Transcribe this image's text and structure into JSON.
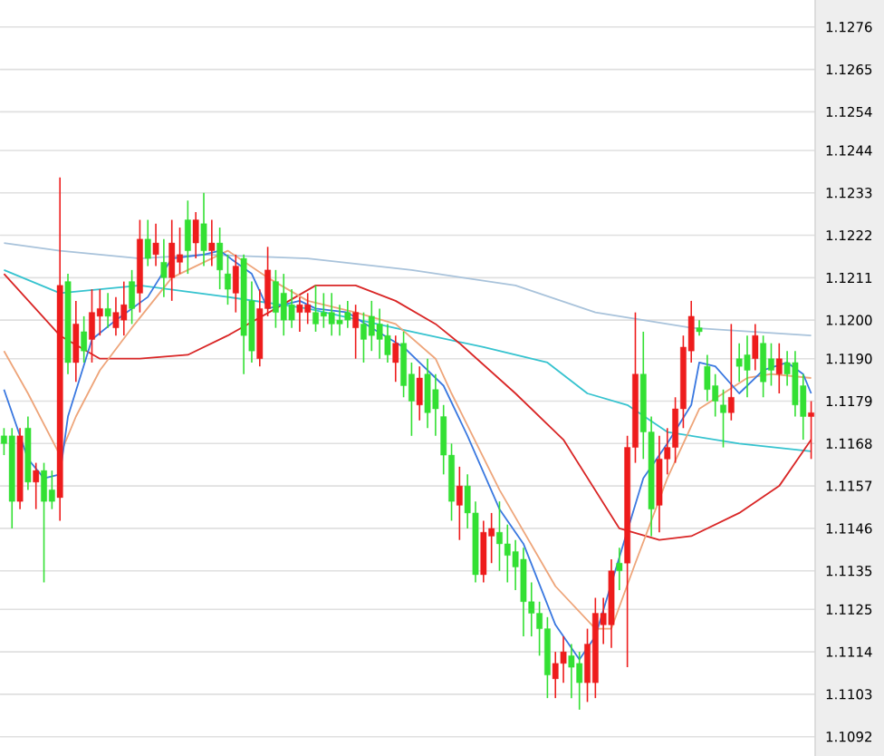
{
  "chart_data": {
    "type": "candlestick",
    "categories": [
      null,
      null,
      null,
      null,
      null,
      null,
      null,
      null,
      null,
      null,
      null,
      null,
      null,
      null,
      null,
      null,
      null,
      null,
      null,
      null,
      null,
      null,
      null,
      null,
      null,
      null,
      null,
      null,
      null,
      null,
      null,
      null,
      null,
      null,
      null,
      null,
      null,
      null,
      null,
      null,
      null,
      null,
      null,
      null,
      null,
      null,
      null,
      null,
      null,
      null,
      null,
      null,
      null,
      null,
      null,
      null,
      null,
      null,
      null,
      null,
      null,
      null,
      null,
      null,
      null,
      null,
      null,
      null,
      null,
      null,
      null,
      null,
      null,
      null,
      null,
      null,
      null,
      null,
      null,
      null,
      null,
      null,
      null,
      null,
      null,
      null,
      null,
      null,
      null,
      null,
      null,
      null,
      null,
      null,
      null,
      null,
      null,
      null,
      null,
      null,
      null,
      null
    ],
    "ohlc": [
      [
        1.117,
        1.1172,
        1.1165,
        1.1168
      ],
      [
        1.117,
        1.1172,
        1.1146,
        1.1153
      ],
      [
        1.1153,
        1.1172,
        1.1151,
        1.117
      ],
      [
        1.1172,
        1.1175,
        1.1156,
        1.1158
      ],
      [
        1.1158,
        1.1163,
        1.1151,
        1.1161
      ],
      [
        1.1161,
        1.1163,
        1.1132,
        1.1153
      ],
      [
        1.1156,
        1.1161,
        1.1151,
        1.1153
      ],
      [
        1.1154,
        1.1237,
        1.1148,
        1.1209
      ],
      [
        1.121,
        1.1212,
        1.1186,
        1.1189
      ],
      [
        1.1189,
        1.1205,
        1.1184,
        1.1199
      ],
      [
        1.1197,
        1.1201,
        1.1189,
        1.1192
      ],
      [
        1.1195,
        1.1208,
        1.1189,
        1.1202
      ],
      [
        1.1201,
        1.1208,
        1.1196,
        1.1203
      ],
      [
        1.1203,
        1.1207,
        1.1198,
        1.1201
      ],
      [
        1.1198,
        1.1206,
        1.1196,
        1.1202
      ],
      [
        1.12,
        1.121,
        1.1196,
        1.1204
      ],
      [
        1.121,
        1.1213,
        1.1199,
        1.1203
      ],
      [
        1.1207,
        1.1226,
        1.1202,
        1.1221
      ],
      [
        1.1221,
        1.1226,
        1.1214,
        1.1216
      ],
      [
        1.1217,
        1.1225,
        1.1214,
        1.122
      ],
      [
        1.1215,
        1.1221,
        1.1206,
        1.1211
      ],
      [
        1.1211,
        1.1226,
        1.1205,
        1.122
      ],
      [
        1.1215,
        1.1224,
        1.1212,
        1.1217
      ],
      [
        1.1226,
        1.1231,
        1.1212,
        1.1218
      ],
      [
        1.122,
        1.1228,
        1.1216,
        1.1226
      ],
      [
        1.1225,
        1.1233,
        1.1214,
        1.1218
      ],
      [
        1.1218,
        1.1226,
        1.1214,
        1.122
      ],
      [
        1.122,
        1.1224,
        1.1208,
        1.1213
      ],
      [
        1.1212,
        1.1217,
        1.1204,
        1.1208
      ],
      [
        1.1207,
        1.1217,
        1.1202,
        1.1214
      ],
      [
        1.1216,
        1.1217,
        1.1186,
        1.1196
      ],
      [
        1.1205,
        1.121,
        1.1189,
        1.1192
      ],
      [
        1.119,
        1.1208,
        1.1188,
        1.1203
      ],
      [
        1.1203,
        1.1219,
        1.1201,
        1.1213
      ],
      [
        1.121,
        1.1213,
        1.1198,
        1.1202
      ],
      [
        1.1207,
        1.1212,
        1.1196,
        1.12
      ],
      [
        1.1204,
        1.1208,
        1.1198,
        1.12
      ],
      [
        1.1202,
        1.1206,
        1.1197,
        1.1204
      ],
      [
        1.1202,
        1.1207,
        1.1199,
        1.1204
      ],
      [
        1.1202,
        1.1209,
        1.1197,
        1.1199
      ],
      [
        1.1202,
        1.1207,
        1.1198,
        1.1201
      ],
      [
        1.1202,
        1.1207,
        1.1196,
        1.1199
      ],
      [
        1.12,
        1.1204,
        1.1196,
        1.1199
      ],
      [
        1.1202,
        1.1205,
        1.1198,
        1.12
      ],
      [
        1.1198,
        1.1204,
        1.119,
        1.1202
      ],
      [
        1.1199,
        1.1202,
        1.1189,
        1.1195
      ],
      [
        1.1201,
        1.1205,
        1.1192,
        1.1196
      ],
      [
        1.1199,
        1.1203,
        1.119,
        1.1195
      ],
      [
        1.1196,
        1.1199,
        1.1189,
        1.1191
      ],
      [
        1.1189,
        1.1196,
        1.1184,
        1.1194
      ],
      [
        1.1194,
        1.1197,
        1.118,
        1.1183
      ],
      [
        1.1186,
        1.1189,
        1.117,
        1.1179
      ],
      [
        1.1178,
        1.1188,
        1.1174,
        1.1185
      ],
      [
        1.1186,
        1.119,
        1.1172,
        1.1176
      ],
      [
        1.1182,
        1.1186,
        1.117,
        1.1177
      ],
      [
        1.1175,
        1.1178,
        1.116,
        1.1165
      ],
      [
        1.1165,
        1.1168,
        1.1148,
        1.1153
      ],
      [
        1.1152,
        1.1162,
        1.1143,
        1.1157
      ],
      [
        1.1157,
        1.116,
        1.1146,
        1.115
      ],
      [
        1.115,
        1.1153,
        1.1132,
        1.1134
      ],
      [
        1.1134,
        1.1148,
        1.1132,
        1.1145
      ],
      [
        1.1144,
        1.115,
        1.1137,
        1.1146
      ],
      [
        1.1145,
        1.1153,
        1.1135,
        1.1142
      ],
      [
        1.1142,
        1.1147,
        1.1132,
        1.1139
      ],
      [
        1.114,
        1.1143,
        1.113,
        1.1136
      ],
      [
        1.1138,
        1.1141,
        1.1118,
        1.1127
      ],
      [
        1.1127,
        1.1132,
        1.1118,
        1.1124
      ],
      [
        1.1124,
        1.1127,
        1.1113,
        1.112
      ],
      [
        1.112,
        1.1123,
        1.1102,
        1.1108
      ],
      [
        1.1107,
        1.1114,
        1.1102,
        1.1111
      ],
      [
        1.1111,
        1.1118,
        1.1106,
        1.1114
      ],
      [
        1.1113,
        1.1116,
        1.1102,
        1.111
      ],
      [
        1.1111,
        1.1114,
        1.1099,
        1.1106
      ],
      [
        1.1106,
        1.112,
        1.1101,
        1.1116
      ],
      [
        1.1106,
        1.1128,
        1.1102,
        1.1124
      ],
      [
        1.1121,
        1.1128,
        1.1116,
        1.1124
      ],
      [
        1.1121,
        1.1138,
        1.1115,
        1.1135
      ],
      [
        1.1137,
        1.1141,
        1.113,
        1.1135
      ],
      [
        1.1137,
        1.117,
        1.111,
        1.1167
      ],
      [
        1.1167,
        1.1202,
        1.1163,
        1.1186
      ],
      [
        1.1186,
        1.1197,
        1.1164,
        1.1171
      ],
      [
        1.1171,
        1.1175,
        1.1144,
        1.1151
      ],
      [
        1.1152,
        1.117,
        1.1145,
        1.1164
      ],
      [
        1.1164,
        1.1172,
        1.116,
        1.1167
      ],
      [
        1.1167,
        1.118,
        1.1163,
        1.1177
      ],
      [
        1.1177,
        1.1196,
        1.1172,
        1.1193
      ],
      [
        1.1192,
        1.1205,
        1.1189,
        1.1201
      ],
      [
        1.1198,
        1.12,
        1.1196,
        1.1197
      ],
      [
        1.1188,
        1.1191,
        1.1179,
        1.1182
      ],
      [
        1.1183,
        1.1186,
        1.1175,
        1.1179
      ],
      [
        1.1178,
        1.1182,
        1.1167,
        1.1176
      ],
      [
        1.1176,
        1.1199,
        1.1174,
        1.118
      ],
      [
        1.119,
        1.1194,
        1.1184,
        1.1188
      ],
      [
        1.1191,
        1.1196,
        1.118,
        1.1187
      ],
      [
        1.119,
        1.1199,
        1.1187,
        1.1196
      ],
      [
        1.1194,
        1.1196,
        1.118,
        1.1184
      ],
      [
        1.119,
        1.1194,
        1.1183,
        1.1187
      ],
      [
        1.1186,
        1.1194,
        1.1181,
        1.119
      ],
      [
        1.1189,
        1.1192,
        1.1183,
        1.1186
      ],
      [
        1.1189,
        1.1192,
        1.1175,
        1.1178
      ],
      [
        1.1183,
        1.1186,
        1.1169,
        1.1175
      ],
      [
        1.1175,
        1.1179,
        1.1164,
        1.1176
      ]
    ],
    "colors": [
      "#33e033",
      "#33e033",
      "#ee1c1c",
      "#33e033",
      "#ee1c1c",
      "#33e033",
      "#33e033",
      "#ee1c1c",
      "#33e033",
      "#ee1c1c",
      "#33e033",
      "#ee1c1c",
      "#ee1c1c",
      "#33e033",
      "#ee1c1c",
      "#ee1c1c",
      "#33e033",
      "#ee1c1c",
      "#33e033",
      "#ee1c1c",
      "#33e033",
      "#ee1c1c",
      "#ee1c1c",
      "#33e033",
      "#ee1c1c",
      "#33e033",
      "#ee1c1c",
      "#33e033",
      "#33e033",
      "#ee1c1c",
      "#33e033",
      "#33e033",
      "#ee1c1c",
      "#ee1c1c",
      "#33e033",
      "#33e033",
      "#33e033",
      "#ee1c1c",
      "#ee1c1c",
      "#33e033",
      "#33e033",
      "#33e033",
      "#33e033",
      "#33e033",
      "#ee1c1c",
      "#33e033",
      "#33e033",
      "#33e033",
      "#33e033",
      "#ee1c1c",
      "#33e033",
      "#33e033",
      "#ee1c1c",
      "#33e033",
      "#33e033",
      "#33e033",
      "#33e033",
      "#ee1c1c",
      "#33e033",
      "#33e033",
      "#ee1c1c",
      "#ee1c1c",
      "#33e033",
      "#33e033",
      "#33e033",
      "#33e033",
      "#33e033",
      "#33e033",
      "#33e033",
      "#ee1c1c",
      "#ee1c1c",
      "#33e033",
      "#33e033",
      "#ee1c1c",
      "#ee1c1c",
      "#ee1c1c",
      "#ee1c1c",
      "#33e033",
      "#ee1c1c",
      "#ee1c1c",
      "#33e033",
      "#33e033",
      "#ee1c1c",
      "#ee1c1c",
      "#ee1c1c",
      "#ee1c1c",
      "#ee1c1c",
      "#33e033",
      "#33e033",
      "#33e033",
      "#33e033",
      "#ee1c1c",
      "#33e033",
      "#33e033",
      "#ee1c1c",
      "#33e033",
      "#33e033",
      "#ee1c1c",
      "#33e033",
      "#33e033",
      "#33e033",
      "#ee1c1c"
    ],
    "series": [
      {
        "type": "line",
        "color": "#a9c3db",
        "values": [
          1.122,
          null,
          null,
          null,
          null,
          null,
          null,
          1.1218,
          null,
          null,
          null,
          null,
          null,
          null,
          null,
          null,
          null,
          1.1216,
          null,
          null,
          null,
          null,
          null,
          null,
          null,
          1.1217,
          null,
          null,
          null,
          null,
          null,
          null,
          null,
          null,
          null,
          null,
          null,
          null,
          1.1216,
          null,
          null,
          null,
          null,
          null,
          null,
          null,
          null,
          null,
          null,
          null,
          null,
          1.1213,
          null,
          null,
          null,
          null,
          null,
          null,
          null,
          null,
          null,
          null,
          null,
          null,
          1.1209,
          null,
          null,
          null,
          null,
          null,
          null,
          null,
          null,
          null,
          1.1202,
          null,
          null,
          null,
          null,
          null,
          1.12,
          null,
          null,
          null,
          null,
          null,
          1.1198,
          null,
          null,
          null,
          null,
          null,
          null,
          null,
          null,
          null,
          null,
          null,
          null,
          null,
          null,
          1.1196
        ]
      },
      {
        "type": "line",
        "color": "#36c3cf",
        "values": [
          1.1213,
          null,
          null,
          null,
          null,
          null,
          null,
          1.1207,
          null,
          null,
          null,
          null,
          null,
          null,
          null,
          null,
          null,
          1.1209,
          null,
          null,
          null,
          null,
          null,
          null,
          null,
          null,
          null,
          null,
          1.1206,
          null,
          null,
          null,
          null,
          null,
          null,
          null,
          null,
          null,
          1.1203,
          null,
          null,
          null,
          null,
          null,
          null,
          null,
          null,
          null,
          null,
          null,
          null,
          1.1197,
          null,
          null,
          null,
          null,
          null,
          null,
          null,
          null,
          1.1193,
          null,
          null,
          null,
          null,
          null,
          null,
          null,
          1.1189,
          null,
          null,
          null,
          null,
          1.1181,
          null,
          null,
          null,
          null,
          1.1178,
          null,
          null,
          null,
          null,
          1.1171,
          null,
          null,
          null,
          null,
          null,
          null,
          null,
          null,
          1.1168,
          null,
          null,
          null,
          null,
          null,
          null,
          null,
          null,
          1.1166
        ]
      },
      {
        "type": "line",
        "color": "#d92626",
        "values": [
          1.1212,
          null,
          null,
          null,
          null,
          null,
          null,
          1.1196,
          null,
          null,
          null,
          null,
          1.119,
          null,
          null,
          null,
          null,
          1.119,
          null,
          null,
          null,
          null,
          null,
          1.1191,
          null,
          null,
          null,
          null,
          1.1196,
          null,
          null,
          null,
          null,
          null,
          1.1203,
          null,
          null,
          null,
          null,
          1.1209,
          null,
          null,
          null,
          null,
          1.1209,
          null,
          null,
          null,
          null,
          1.1205,
          null,
          null,
          null,
          null,
          1.1199,
          null,
          null,
          1.1194,
          null,
          null,
          null,
          null,
          null,
          null,
          1.1181,
          null,
          null,
          null,
          null,
          null,
          1.1169,
          null,
          null,
          null,
          null,
          null,
          null,
          1.1146,
          null,
          null,
          null,
          null,
          1.1143,
          null,
          null,
          null,
          1.1144,
          null,
          null,
          null,
          null,
          null,
          1.115,
          null,
          null,
          null,
          null,
          1.1157,
          null,
          null,
          null,
          1.1169
        ]
      },
      {
        "type": "line",
        "color": "#eea57a",
        "values": [
          1.1192,
          null,
          null,
          1.1181,
          null,
          null,
          null,
          1.1165,
          null,
          1.1175,
          null,
          null,
          1.1187,
          null,
          null,
          null,
          1.1198,
          null,
          null,
          null,
          null,
          1.1211,
          null,
          null,
          null,
          null,
          null,
          null,
          1.1218,
          null,
          null,
          null,
          null,
          1.1211,
          null,
          null,
          null,
          null,
          1.1205,
          null,
          null,
          null,
          null,
          null,
          1.1202,
          null,
          null,
          null,
          null,
          1.1199,
          null,
          null,
          null,
          null,
          1.119,
          null,
          1.1181,
          null,
          null,
          null,
          null,
          null,
          1.1156,
          null,
          null,
          null,
          null,
          null,
          null,
          1.1131,
          null,
          null,
          null,
          null,
          1.112,
          null,
          1.112,
          null,
          null,
          1.1137,
          null,
          null,
          null,
          1.1159,
          null,
          null,
          null,
          1.1177,
          null,
          null,
          null,
          null,
          null,
          1.1185,
          null,
          null,
          1.1186,
          null,
          null,
          null,
          null,
          1.1185
        ]
      },
      {
        "type": "line",
        "color": "#3a78e0",
        "values": [
          1.1182,
          null,
          null,
          1.1164,
          null,
          1.1159,
          null,
          1.116,
          1.1175,
          null,
          null,
          1.1195,
          null,
          null,
          1.12,
          null,
          null,
          null,
          1.1206,
          null,
          null,
          1.1216,
          null,
          null,
          null,
          1.1217,
          null,
          1.1218,
          null,
          null,
          null,
          1.1212,
          null,
          1.1203,
          null,
          null,
          null,
          1.1205,
          null,
          1.1203,
          null,
          null,
          null,
          1.1202,
          null,
          null,
          1.1198,
          null,
          null,
          null,
          1.1193,
          null,
          null,
          null,
          null,
          1.1183,
          null,
          null,
          1.117,
          null,
          null,
          null,
          1.1151,
          null,
          null,
          1.1142,
          null,
          null,
          null,
          1.1121,
          null,
          null,
          1.1112,
          null,
          1.1118,
          null,
          null,
          null,
          null,
          null,
          1.1159,
          null,
          null,
          1.1168,
          null,
          null,
          1.1178,
          1.1189,
          null,
          1.1188,
          null,
          null,
          1.1181,
          null,
          null,
          1.1187,
          null,
          null,
          1.1189,
          null,
          1.1186,
          1.1181
        ]
      }
    ],
    "ylim": [
      1.1087,
      1.1283
    ],
    "yticks": [
      1.1092,
      1.1103,
      1.1114,
      1.1125,
      1.1135,
      1.1146,
      1.1157,
      1.1168,
      1.1179,
      {
        "value": 1.119,
        "label": "1.1190"
      },
      {
        "value": 1.12,
        "label": "1.1200"
      },
      1.1211,
      1.1222,
      1.1233,
      1.1244,
      1.1254,
      1.1265,
      1.1276
    ],
    "grid": "y",
    "tick_labels": "y"
  }
}
